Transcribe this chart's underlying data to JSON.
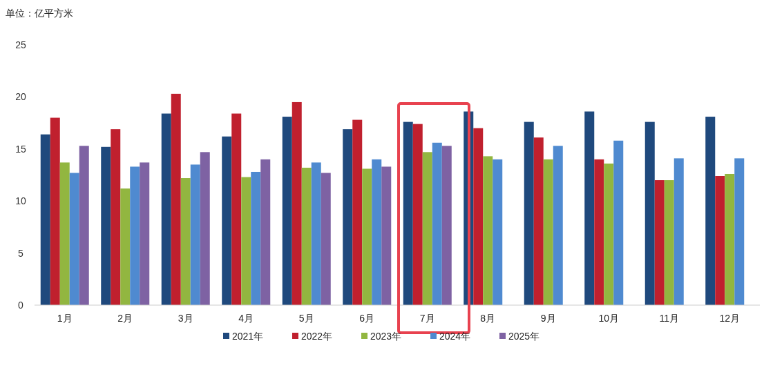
{
  "chart_data": {
    "type": "bar",
    "ylabel": "单位：亿平方米",
    "categories": [
      "1月",
      "2月",
      "3月",
      "4月",
      "5月",
      "6月",
      "7月",
      "8月",
      "9月",
      "10月",
      "11月",
      "12月"
    ],
    "series": [
      {
        "name": "2021年",
        "color": "#1f497d",
        "values": [
          16.4,
          15.2,
          18.4,
          16.2,
          18.1,
          16.9,
          17.6,
          18.6,
          17.6,
          18.6,
          17.6,
          18.1
        ]
      },
      {
        "name": "2022年",
        "color": "#c0202e",
        "values": [
          18.0,
          16.9,
          20.3,
          18.4,
          19.5,
          17.8,
          17.4,
          17.0,
          16.1,
          14.0,
          12.0,
          12.4
        ]
      },
      {
        "name": "2023年",
        "color": "#92b640",
        "values": [
          13.7,
          11.2,
          12.2,
          12.3,
          13.2,
          13.1,
          14.7,
          14.3,
          14.0,
          13.6,
          12.0,
          12.6
        ]
      },
      {
        "name": "2024年",
        "color": "#4f8ad0",
        "values": [
          12.7,
          13.3,
          13.5,
          12.8,
          13.7,
          14.0,
          15.6,
          14.0,
          15.3,
          15.8,
          14.1,
          14.1
        ]
      },
      {
        "name": "2025年",
        "color": "#7e62a3",
        "values": [
          15.3,
          13.7,
          14.7,
          14.0,
          12.7,
          13.3,
          15.3,
          null,
          null,
          null,
          null,
          null
        ]
      }
    ],
    "ylim": [
      0,
      25
    ],
    "yticks": [
      0,
      5,
      10,
      15,
      20,
      25
    ],
    "legend": "bottom"
  }
}
